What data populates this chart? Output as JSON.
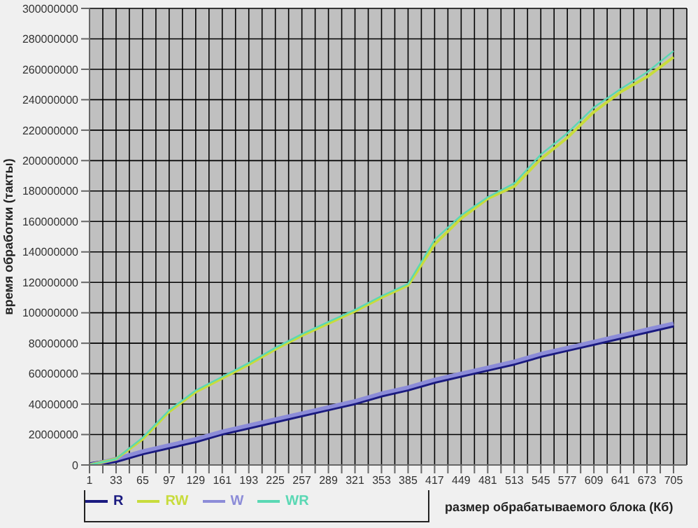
{
  "chart_data": {
    "type": "line",
    "xlabel": "размер обрабатываемого блока (Кб)",
    "ylabel": "время обработки (такты)",
    "x": [
      1,
      33,
      65,
      97,
      129,
      161,
      193,
      225,
      257,
      289,
      321,
      353,
      385,
      417,
      449,
      481,
      513,
      545,
      577,
      609,
      641,
      673,
      705
    ],
    "series": [
      {
        "name": "R",
        "color": "#1a1a80",
        "values": [
          0,
          3000000,
          8000000,
          12000000,
          16000000,
          21000000,
          25000000,
          29000000,
          33000000,
          37000000,
          41000000,
          46000000,
          50000000,
          55000000,
          59000000,
          63000000,
          67000000,
          72000000,
          76000000,
          80000000,
          84000000,
          88000000,
          92000000
        ]
      },
      {
        "name": "W",
        "color": "#8c8cd8",
        "values": [
          0,
          4000000,
          9000000,
          13000000,
          17000000,
          22000000,
          26000000,
          30000000,
          34000000,
          38000000,
          42000000,
          47000000,
          51000000,
          56000000,
          60000000,
          64000000,
          68000000,
          73000000,
          77000000,
          81000000,
          85000000,
          89000000,
          93000000
        ]
      },
      {
        "name": "RW",
        "color": "#c8dc3c",
        "values": [
          0,
          4000000,
          17000000,
          35000000,
          48000000,
          57000000,
          66000000,
          76000000,
          85000000,
          93000000,
          101000000,
          110000000,
          118000000,
          145000000,
          162000000,
          175000000,
          183000000,
          201000000,
          215000000,
          232000000,
          245000000,
          255000000,
          268000000
        ]
      },
      {
        "name": "WR",
        "color": "#5ad8b4",
        "values": [
          0,
          4000000,
          18000000,
          36000000,
          49000000,
          58000000,
          67000000,
          77000000,
          86000000,
          94000000,
          102000000,
          111000000,
          119000000,
          148000000,
          164000000,
          176000000,
          185000000,
          204000000,
          218000000,
          235000000,
          247000000,
          258000000,
          272000000
        ]
      }
    ],
    "xlim": [
      1,
      721
    ],
    "xticks": [
      1,
      {
        "value": 17,
        "label": null
      },
      33,
      {
        "value": 49,
        "label": null
      },
      65,
      {
        "value": 81,
        "label": null
      },
      97,
      {
        "value": 113,
        "label": null
      },
      129,
      {
        "value": 145,
        "label": null
      },
      161,
      {
        "value": 177,
        "label": null
      },
      193,
      {
        "value": 209,
        "label": null
      },
      225,
      {
        "value": 241,
        "label": null
      },
      257,
      {
        "value": 273,
        "label": null
      },
      289,
      {
        "value": 305,
        "label": null
      },
      321,
      {
        "value": 337,
        "label": null
      },
      353,
      {
        "value": 369,
        "label": null
      },
      385,
      {
        "value": 401,
        "label": null
      },
      417,
      {
        "value": 433,
        "label": null
      },
      449,
      {
        "value": 465,
        "label": null
      },
      481,
      {
        "value": 497,
        "label": null
      },
      513,
      {
        "value": 529,
        "label": null
      },
      545,
      {
        "value": 561,
        "label": null
      },
      577,
      {
        "value": 593,
        "label": null
      },
      609,
      {
        "value": 625,
        "label": null
      },
      641,
      {
        "value": 657,
        "label": null
      },
      673,
      {
        "value": 689,
        "label": null
      },
      705
    ],
    "ylim": [
      0,
      300000000
    ],
    "yticks": [
      0,
      20000000,
      40000000,
      60000000,
      80000000,
      100000000,
      120000000,
      140000000,
      160000000,
      180000000,
      200000000,
      220000000,
      240000000,
      260000000,
      280000000,
      300000000
    ],
    "grid": true,
    "legend": "bottom left",
    "marker": "none",
    "line_style": "solid"
  }
}
